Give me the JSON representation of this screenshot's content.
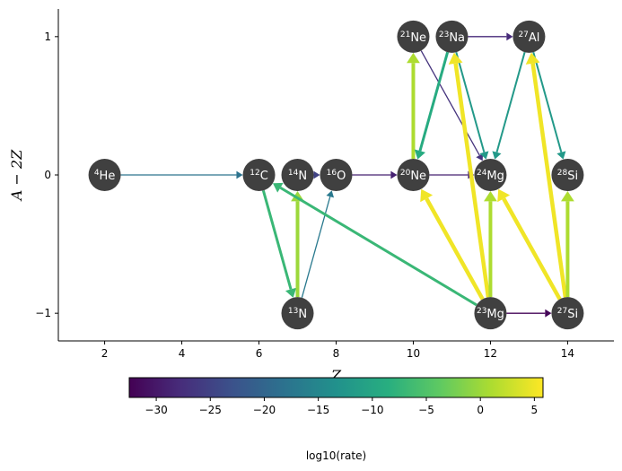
{
  "chart_data": {
    "type": "scatter",
    "title": "",
    "xlabel": "Z",
    "ylabel": "A − 2Z",
    "xlim": [
      0.8,
      15.2
    ],
    "ylim": [
      -1.2,
      1.2
    ],
    "xticks": [
      2,
      4,
      6,
      8,
      10,
      12,
      14
    ],
    "xtick_labels": [
      "2",
      "4",
      "6",
      "8",
      "10",
      "12",
      "14"
    ],
    "yticks": [
      -1,
      0,
      1
    ],
    "ytick_labels": [
      "−1",
      "0",
      "1"
    ],
    "grid": false,
    "nodes": [
      {
        "id": "He4",
        "mass": "4",
        "symbol": "He",
        "Z": 2,
        "y": 0
      },
      {
        "id": "C12",
        "mass": "12",
        "symbol": "C",
        "Z": 6,
        "y": 0
      },
      {
        "id": "N13",
        "mass": "13",
        "symbol": "N",
        "Z": 7,
        "y": -1
      },
      {
        "id": "N14",
        "mass": "14",
        "symbol": "N",
        "Z": 7,
        "y": 0
      },
      {
        "id": "O16",
        "mass": "16",
        "symbol": "O",
        "Z": 8,
        "y": 0
      },
      {
        "id": "Ne20",
        "mass": "20",
        "symbol": "Ne",
        "Z": 10,
        "y": 0
      },
      {
        "id": "Ne21",
        "mass": "21",
        "symbol": "Ne",
        "Z": 10,
        "y": 1
      },
      {
        "id": "Na23",
        "mass": "23",
        "symbol": "Na",
        "Z": 11,
        "y": 1
      },
      {
        "id": "Mg23",
        "mass": "23",
        "symbol": "Mg",
        "Z": 12,
        "y": -1
      },
      {
        "id": "Mg24",
        "mass": "24",
        "symbol": "Mg",
        "Z": 12,
        "y": 0
      },
      {
        "id": "Al27",
        "mass": "27",
        "symbol": "Al",
        "Z": 13,
        "y": 1
      },
      {
        "id": "Si27",
        "mass": "27",
        "symbol": "Si",
        "Z": 14,
        "y": -1
      },
      {
        "id": "Si28",
        "mass": "28",
        "symbol": "Si",
        "Z": 14,
        "y": 0
      }
    ],
    "links": [
      {
        "from": "He4",
        "to": "C12",
        "log10_rate": -18
      },
      {
        "from": "C12",
        "to": "N13",
        "log10_rate": -7
      },
      {
        "from": "N13",
        "to": "N14",
        "log10_rate": 0
      },
      {
        "from": "N13",
        "to": "O16",
        "log10_rate": -17
      },
      {
        "from": "N14",
        "to": "O16",
        "log10_rate": -25
      },
      {
        "from": "O16",
        "to": "Ne20",
        "log10_rate": -29
      },
      {
        "from": "Ne20",
        "to": "Ne21",
        "log10_rate": 1
      },
      {
        "from": "Ne20",
        "to": "Mg24",
        "log10_rate": -29
      },
      {
        "from": "Ne21",
        "to": "Mg24",
        "log10_rate": -27
      },
      {
        "from": "Na23",
        "to": "Ne20",
        "log10_rate": -9
      },
      {
        "from": "Na23",
        "to": "Mg24",
        "log10_rate": -12
      },
      {
        "from": "Na23",
        "to": "Al27",
        "log10_rate": -28
      },
      {
        "from": "Al27",
        "to": "Mg24",
        "log10_rate": -12
      },
      {
        "from": "Al27",
        "to": "Si28",
        "log10_rate": -12
      },
      {
        "from": "Mg23",
        "to": "C12",
        "log10_rate": -7
      },
      {
        "from": "Mg23",
        "to": "Ne20",
        "log10_rate": 5
      },
      {
        "from": "Mg23",
        "to": "Na23",
        "log10_rate": 5
      },
      {
        "from": "Mg23",
        "to": "Mg24",
        "log10_rate": 1
      },
      {
        "from": "Mg23",
        "to": "Si27",
        "log10_rate": -32
      },
      {
        "from": "Si27",
        "to": "Mg24",
        "log10_rate": 5
      },
      {
        "from": "Si27",
        "to": "Al27",
        "log10_rate": 5
      },
      {
        "from": "Si27",
        "to": "Si28",
        "log10_rate": 1
      }
    ],
    "colorbar": {
      "label": "log10(rate)",
      "colormap": "viridis",
      "vmin": -32.5,
      "vmax": 5.8,
      "ticks": [
        -30,
        -25,
        -20,
        -15,
        -10,
        -5,
        0,
        5
      ],
      "tick_labels": [
        "−30",
        "−25",
        "−20",
        "−15",
        "−10",
        "−5",
        "0",
        "5"
      ]
    },
    "colors": {
      "node_fill": "#404040",
      "node_text": "#ffffff"
    }
  }
}
